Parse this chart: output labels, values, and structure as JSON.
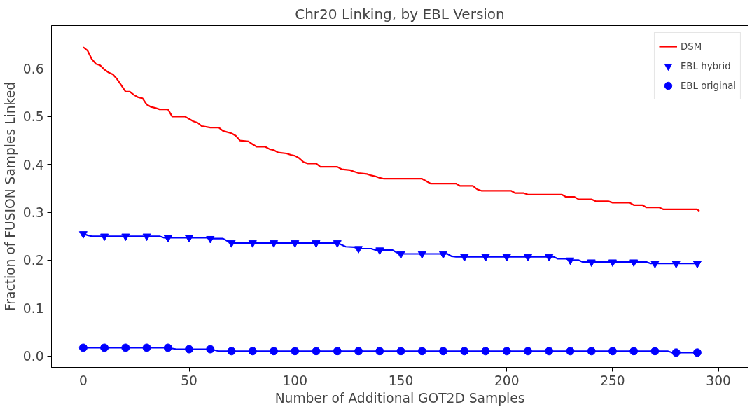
{
  "chart_data": {
    "type": "line",
    "title": "Chr20 Linking, by EBL Version",
    "xlabel": "Number of Additional GOT2D Samples",
    "ylabel": "Fraction of FUSION Samples Linked",
    "xlim": [
      -15,
      314
    ],
    "ylim": [
      -0.024,
      0.69
    ],
    "xticks": [
      0,
      50,
      100,
      150,
      200,
      250,
      300
    ],
    "yticks": [
      {
        "value": 0,
        "label": "0.0"
      },
      0.1,
      0.2,
      0.3,
      0.4,
      0.5,
      0.6
    ],
    "grid": false,
    "legend": "top right",
    "line_style": "solid",
    "series": [
      {
        "name": "DSM",
        "color": "#ff0000",
        "marker": "none",
        "x": [
          0,
          2,
          4,
          6,
          8,
          10,
          12,
          14,
          16,
          18,
          20,
          22,
          24,
          26,
          28,
          30,
          32,
          34,
          36,
          40,
          42,
          48,
          50,
          52,
          54,
          56,
          60,
          64,
          66,
          70,
          72,
          74,
          78,
          80,
          82,
          86,
          88,
          90,
          92,
          96,
          98,
          100,
          102,
          104,
          106,
          110,
          112,
          120,
          122,
          126,
          128,
          130,
          134,
          136,
          138,
          140,
          142,
          160,
          164,
          176,
          178,
          184,
          186,
          188,
          202,
          204,
          208,
          210,
          226,
          228,
          232,
          234,
          240,
          242,
          248,
          250,
          258,
          260,
          264,
          266,
          272,
          274,
          290,
          291
        ],
        "values": [
          0.645,
          0.638,
          0.62,
          0.61,
          0.607,
          0.598,
          0.592,
          0.588,
          0.578,
          0.565,
          0.552,
          0.552,
          0.545,
          0.54,
          0.538,
          0.525,
          0.52,
          0.518,
          0.515,
          0.515,
          0.5,
          0.5,
          0.495,
          0.49,
          0.487,
          0.48,
          0.477,
          0.477,
          0.47,
          0.465,
          0.46,
          0.45,
          0.448,
          0.442,
          0.437,
          0.437,
          0.432,
          0.43,
          0.425,
          0.423,
          0.42,
          0.418,
          0.413,
          0.405,
          0.402,
          0.402,
          0.395,
          0.395,
          0.39,
          0.388,
          0.385,
          0.382,
          0.38,
          0.377,
          0.375,
          0.372,
          0.37,
          0.37,
          0.36,
          0.36,
          0.355,
          0.355,
          0.348,
          0.345,
          0.345,
          0.34,
          0.34,
          0.337,
          0.337,
          0.332,
          0.332,
          0.327,
          0.327,
          0.323,
          0.323,
          0.32,
          0.32,
          0.315,
          0.315,
          0.31,
          0.31,
          0.306,
          0.306,
          0.302
        ]
      },
      {
        "color": "#0000ff",
        "marker": "none",
        "x": [
          0,
          2,
          4,
          36,
          38,
          58,
          60,
          66,
          68,
          70,
          120,
          122,
          124,
          128,
          130,
          136,
          138,
          146,
          148,
          150,
          172,
          174,
          176,
          222,
          224,
          228,
          230,
          234,
          236,
          266,
          268,
          291
        ],
        "values": [
          0.255,
          0.252,
          0.25,
          0.25,
          0.247,
          0.247,
          0.245,
          0.245,
          0.24,
          0.236,
          0.236,
          0.232,
          0.228,
          0.227,
          0.224,
          0.224,
          0.221,
          0.221,
          0.216,
          0.213,
          0.213,
          0.208,
          0.207,
          0.207,
          0.203,
          0.203,
          0.2,
          0.2,
          0.196,
          0.196,
          0.193,
          0.193
        ]
      },
      {
        "name": "EBL hybrid",
        "type": "scatter",
        "color": "#0000ff",
        "marker": "triangle_down",
        "x": [
          0,
          10,
          20,
          30,
          40,
          50,
          60,
          70,
          80,
          90,
          100,
          110,
          120,
          130,
          140,
          150,
          160,
          170,
          180,
          190,
          200,
          210,
          220,
          230,
          240,
          250,
          260,
          270,
          280,
          290
        ],
        "values": [
          0.255,
          0.25,
          0.25,
          0.25,
          0.247,
          0.247,
          0.245,
          0.236,
          0.236,
          0.236,
          0.236,
          0.236,
          0.236,
          0.224,
          0.221,
          0.213,
          0.213,
          0.213,
          0.207,
          0.207,
          0.207,
          0.207,
          0.207,
          0.2,
          0.196,
          0.196,
          0.196,
          0.193,
          0.193,
          0.193
        ]
      },
      {
        "color": "#0000ff",
        "marker": "none",
        "x": [
          0,
          40,
          44,
          60,
          64,
          276,
          278,
          291
        ],
        "values": [
          0.017,
          0.017,
          0.014,
          0.014,
          0.01,
          0.01,
          0.007,
          0.007
        ]
      },
      {
        "name": "EBL original",
        "type": "scatter",
        "color": "#0000ff",
        "marker": "circle",
        "x": [
          0,
          10,
          20,
          30,
          40,
          50,
          60,
          70,
          80,
          90,
          100,
          110,
          120,
          130,
          140,
          150,
          160,
          170,
          180,
          190,
          200,
          210,
          220,
          230,
          240,
          250,
          260,
          270,
          280,
          290
        ],
        "values": [
          0.017,
          0.017,
          0.017,
          0.017,
          0.017,
          0.014,
          0.014,
          0.01,
          0.01,
          0.01,
          0.01,
          0.01,
          0.01,
          0.01,
          0.01,
          0.01,
          0.01,
          0.01,
          0.01,
          0.01,
          0.01,
          0.01,
          0.01,
          0.01,
          0.01,
          0.01,
          0.01,
          0.01,
          0.007,
          0.007
        ]
      }
    ]
  }
}
